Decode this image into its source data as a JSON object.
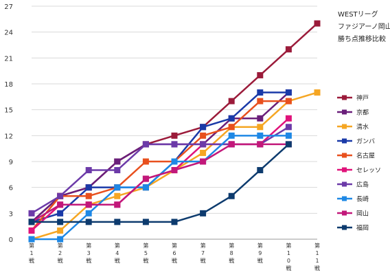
{
  "chart_data": {
    "type": "line",
    "title_lines": [
      "WESTリーグ",
      "ファジアーノ岡山",
      "勝ち点推移比較"
    ],
    "categories": [
      [
        "第",
        "1",
        "戦"
      ],
      [
        "第",
        "2",
        "戦"
      ],
      [
        "第",
        "3",
        "戦"
      ],
      [
        "第",
        "4",
        "戦"
      ],
      [
        "第",
        "5",
        "戦"
      ],
      [
        "第",
        "6",
        "戦"
      ],
      [
        "第",
        "7",
        "戦"
      ],
      [
        "第",
        "8",
        "戦"
      ],
      [
        "第",
        "9",
        "戦"
      ],
      [
        "第",
        "1",
        "0",
        "戦"
      ],
      [
        "第",
        "1",
        "1",
        "戦"
      ]
    ],
    "ylim": [
      0,
      27
    ],
    "yticks": [
      0,
      3,
      6,
      9,
      12,
      15,
      18,
      21,
      24,
      27
    ],
    "grid": true,
    "legend": "right",
    "series": [
      {
        "name": "神戸",
        "color": "#9b1b3a",
        "values": [
          2,
          5,
          6,
          9,
          11,
          12,
          13,
          16,
          19,
          22,
          25
        ]
      },
      {
        "name": "京都",
        "color": "#6a1f7a",
        "values": [
          2,
          5,
          6,
          9,
          11,
          11,
          11,
          14,
          14,
          17,
          null
        ]
      },
      {
        "name": "清水",
        "color": "#f5a623",
        "values": [
          0,
          1,
          4,
          5,
          6,
          8,
          10,
          13,
          13,
          16,
          17
        ]
      },
      {
        "name": "ガンバ",
        "color": "#1a3aa8",
        "values": [
          2,
          3,
          6,
          6,
          6,
          9,
          13,
          14,
          17,
          17,
          null
        ]
      },
      {
        "name": "名古屋",
        "color": "#e8501e",
        "values": [
          1,
          5,
          5,
          6,
          9,
          9,
          12,
          13,
          16,
          16,
          null
        ]
      },
      {
        "name": "セレッソ",
        "color": "#e0137a",
        "values": [
          1,
          4,
          4,
          4,
          7,
          8,
          11,
          11,
          11,
          14,
          null
        ]
      },
      {
        "name": "広島",
        "color": "#6c3aa8",
        "values": [
          3,
          5,
          8,
          8,
          11,
          11,
          11,
          11,
          11,
          13,
          null
        ]
      },
      {
        "name": "長崎",
        "color": "#1e88e5",
        "values": [
          0,
          0,
          3,
          6,
          6,
          9,
          9,
          12,
          12,
          12,
          null
        ]
      },
      {
        "name": "岡山",
        "color": "#c2187a",
        "values": [
          2,
          4,
          4,
          4,
          7,
          8,
          9,
          11,
          11,
          11,
          null
        ]
      },
      {
        "name": "福岡",
        "color": "#0d3b6e",
        "values": [
          2,
          2,
          2,
          2,
          2,
          2,
          3,
          5,
          8,
          11,
          null
        ]
      }
    ]
  }
}
